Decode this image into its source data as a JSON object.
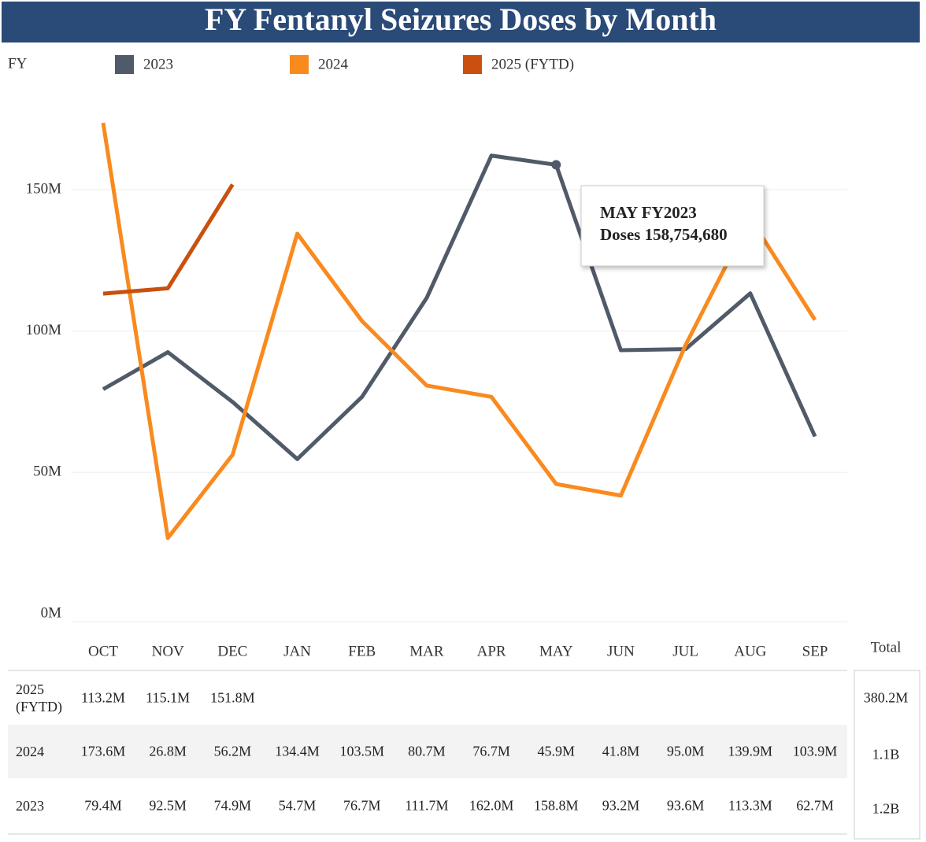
{
  "chart_data": {
    "type": "line",
    "title": "FY Fentanyl Seizures Doses by Month",
    "legend_title": "FY",
    "total_header": "Total",
    "categories": [
      "OCT",
      "NOV",
      "DEC",
      "JAN",
      "FEB",
      "MAR",
      "APR",
      "MAY",
      "JUN",
      "JUL",
      "AUG",
      "SEP"
    ],
    "ylim": [
      0,
      185000000
    ],
    "yticks": [
      {
        "value": 0,
        "label": "0M"
      },
      {
        "value": 50000000,
        "label": "50M"
      },
      {
        "value": 100000000,
        "label": "100M"
      },
      {
        "value": 150000000,
        "label": "150M"
      }
    ],
    "grid": true,
    "series": [
      {
        "name": "2023",
        "color": "#505a68",
        "values": [
          79400000,
          92500000,
          74900000,
          54700000,
          76700000,
          111700000,
          162000000,
          158754680,
          93200000,
          93600000,
          113300000,
          62700000
        ],
        "value_labels": [
          "79.4M",
          "92.5M",
          "74.9M",
          "54.7M",
          "76.7M",
          "111.7M",
          "162.0M",
          "158.8M",
          "93.2M",
          "93.6M",
          "113.3M",
          "62.7M"
        ],
        "total": "1.2B"
      },
      {
        "name": "2024",
        "color": "#f98a1e",
        "values": [
          173600000,
          26800000,
          56200000,
          134400000,
          103500000,
          80700000,
          76700000,
          45900000,
          41800000,
          95000000,
          139900000,
          103900000
        ],
        "value_labels": [
          "173.6M",
          "26.8M",
          "56.2M",
          "134.4M",
          "103.5M",
          "80.7M",
          "76.7M",
          "45.9M",
          "41.8M",
          "95.0M",
          "139.9M",
          "103.9M"
        ],
        "total": "1.1B"
      },
      {
        "name": "2025 (FYTD)",
        "color": "#c9500e",
        "values": [
          113200000,
          115100000,
          151800000,
          null,
          null,
          null,
          null,
          null,
          null,
          null,
          null,
          null
        ],
        "value_labels": [
          "113.2M",
          "115.1M",
          "151.8M",
          null,
          null,
          null,
          null,
          null,
          null,
          null,
          null,
          null
        ],
        "total": "380.2M"
      }
    ],
    "tooltip": {
      "title": "MAY FY2023",
      "text": "Doses 158,754,680",
      "series": 0,
      "index": 7
    }
  }
}
